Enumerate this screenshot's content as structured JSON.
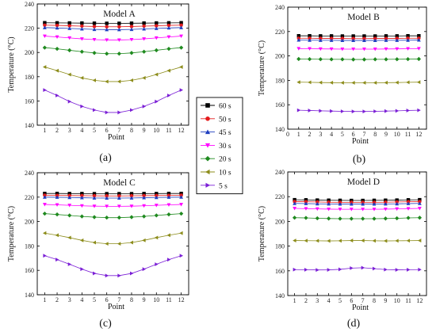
{
  "legend": [
    {
      "name": "60 s",
      "color": "#000000",
      "marker": "square"
    },
    {
      "name": "50 s",
      "color": "#e41a1c",
      "marker": "circle"
    },
    {
      "name": "45 s",
      "color": "#1f3fbf",
      "marker": "triangle-up"
    },
    {
      "name": "30 s",
      "color": "#ff00ff",
      "marker": "triangle-down"
    },
    {
      "name": "20 s",
      "color": "#1f8a1f",
      "marker": "diamond"
    },
    {
      "name": "10 s",
      "color": "#8c8c1a",
      "marker": "triangle-left"
    },
    {
      "name": "5 s",
      "color": "#7b1fd6",
      "marker": "triangle-right"
    }
  ],
  "chart_data": [
    {
      "type": "line",
      "title": "Model A",
      "panel_label": "(a)",
      "xlabel": "Point",
      "ylabel": "Temperature (°C)",
      "x": [
        1,
        2,
        3,
        4,
        5,
        6,
        7,
        8,
        9,
        10,
        11,
        12
      ],
      "xticks": [
        1,
        2,
        3,
        4,
        5,
        6,
        7,
        8,
        9,
        10,
        11,
        12
      ],
      "xlim": [
        0.4,
        12.6
      ],
      "ylim": [
        140,
        240
      ],
      "yticks": [
        140,
        160,
        180,
        200,
        220,
        240
      ],
      "series": [
        {
          "name": "60 s",
          "values": [
            224.5,
            224.4,
            224.3,
            224.2,
            224.1,
            224.0,
            224.0,
            224.1,
            224.2,
            224.3,
            224.4,
            224.5
          ]
        },
        {
          "name": "50 s",
          "values": [
            222.5,
            222.3,
            222.0,
            221.7,
            221.4,
            221.2,
            221.2,
            221.4,
            221.7,
            222.0,
            222.3,
            222.5
          ]
        },
        {
          "name": "45 s",
          "values": [
            220.5,
            220.2,
            219.8,
            219.4,
            219.0,
            218.8,
            218.8,
            219.0,
            219.4,
            219.8,
            220.2,
            220.5
          ]
        },
        {
          "name": "30 s",
          "values": [
            213.5,
            212.8,
            212.0,
            211.2,
            210.6,
            210.3,
            210.3,
            210.6,
            211.2,
            212.0,
            212.8,
            213.5
          ]
        },
        {
          "name": "20 s",
          "values": [
            204.0,
            203.0,
            201.8,
            200.6,
            199.6,
            199.0,
            199.0,
            199.6,
            200.6,
            201.8,
            203.0,
            204.0
          ]
        },
        {
          "name": "10 s",
          "values": [
            188.0,
            185.0,
            181.8,
            179.0,
            177.0,
            176.0,
            176.0,
            177.0,
            179.0,
            181.8,
            185.0,
            188.0
          ]
        },
        {
          "name": "5 s",
          "values": [
            169.0,
            164.5,
            159.5,
            155.5,
            152.5,
            150.5,
            150.5,
            152.5,
            155.5,
            159.5,
            164.5,
            169.0
          ]
        }
      ]
    },
    {
      "type": "line",
      "title": "Model B",
      "panel_label": "(b)",
      "xlabel": "Point",
      "ylabel": "Temperature (°C)",
      "x": [
        1,
        2,
        3,
        4,
        5,
        6,
        7,
        8,
        9,
        10,
        11,
        12
      ],
      "xticks": [
        0,
        1,
        2,
        3,
        4,
        5,
        6,
        7,
        8,
        9,
        10,
        11,
        12
      ],
      "xlim": [
        0,
        12.7
      ],
      "ylim": [
        140,
        240
      ],
      "yticks": [
        140,
        160,
        180,
        200,
        220,
        240
      ],
      "series": [
        {
          "name": "60 s",
          "values": [
            216.5,
            216.5,
            216.4,
            216.4,
            216.3,
            216.3,
            216.3,
            216.3,
            216.4,
            216.4,
            216.5,
            216.5
          ]
        },
        {
          "name": "50 s",
          "values": [
            214.5,
            214.5,
            214.4,
            214.3,
            214.3,
            214.2,
            214.2,
            214.3,
            214.3,
            214.4,
            214.5,
            214.5
          ]
        },
        {
          "name": "45 s",
          "values": [
            213.0,
            212.9,
            212.8,
            212.8,
            212.7,
            212.7,
            212.7,
            212.7,
            212.8,
            212.8,
            212.9,
            213.0
          ]
        },
        {
          "name": "30 s",
          "values": [
            206.0,
            205.9,
            205.8,
            205.7,
            205.6,
            205.6,
            205.6,
            205.6,
            205.7,
            205.8,
            205.9,
            206.0
          ]
        },
        {
          "name": "20 s",
          "values": [
            197.5,
            197.4,
            197.3,
            197.2,
            197.2,
            197.1,
            197.1,
            197.2,
            197.2,
            197.3,
            197.4,
            197.5
          ]
        },
        {
          "name": "10 s",
          "values": [
            178.5,
            178.4,
            178.2,
            178.1,
            178.0,
            178.0,
            178.0,
            178.0,
            178.1,
            178.2,
            178.4,
            178.5
          ]
        },
        {
          "name": "5 s",
          "values": [
            155.5,
            155.3,
            155.0,
            154.8,
            154.6,
            154.5,
            154.5,
            154.6,
            154.8,
            155.0,
            155.3,
            155.5
          ]
        }
      ]
    },
    {
      "type": "line",
      "title": "Model C",
      "panel_label": "(c)",
      "xlabel": "Point",
      "ylabel": "Temperature (°C)",
      "x": [
        1,
        2,
        3,
        4,
        5,
        6,
        7,
        8,
        9,
        10,
        11,
        12
      ],
      "xticks": [
        1,
        2,
        3,
        4,
        5,
        6,
        7,
        8,
        9,
        10,
        11,
        12
      ],
      "xlim": [
        0.4,
        12.6
      ],
      "ylim": [
        140,
        240
      ],
      "yticks": [
        140,
        160,
        180,
        200,
        220,
        240
      ],
      "series": [
        {
          "name": "60 s",
          "values": [
            223.0,
            223.0,
            222.9,
            222.9,
            222.8,
            222.8,
            222.8,
            222.8,
            222.9,
            222.9,
            223.0,
            223.0
          ]
        },
        {
          "name": "50 s",
          "values": [
            221.5,
            221.4,
            221.3,
            221.2,
            221.1,
            221.0,
            221.0,
            221.1,
            221.2,
            221.3,
            221.4,
            221.5
          ]
        },
        {
          "name": "45 s",
          "values": [
            220.0,
            219.9,
            219.7,
            219.5,
            219.3,
            219.2,
            219.2,
            219.3,
            219.5,
            219.7,
            219.9,
            220.0
          ]
        },
        {
          "name": "30 s",
          "values": [
            214.0,
            213.7,
            213.3,
            212.9,
            212.6,
            212.5,
            212.5,
            212.6,
            212.9,
            213.3,
            213.7,
            214.0
          ]
        },
        {
          "name": "20 s",
          "values": [
            206.5,
            205.8,
            205.0,
            204.2,
            203.6,
            203.2,
            203.2,
            203.6,
            204.2,
            205.0,
            205.8,
            206.5
          ]
        },
        {
          "name": "10 s",
          "values": [
            190.5,
            188.8,
            186.8,
            184.6,
            182.8,
            181.8,
            181.8,
            182.8,
            184.6,
            186.8,
            188.8,
            190.5
          ]
        },
        {
          "name": "5 s",
          "values": [
            172.0,
            168.8,
            165.0,
            161.0,
            157.5,
            155.7,
            155.7,
            157.5,
            161.0,
            165.0,
            168.8,
            172.0
          ]
        }
      ]
    },
    {
      "type": "line",
      "title": "Model D",
      "panel_label": "(d)",
      "xlabel": "Point",
      "ylabel": "Temperature (°C)",
      "x": [
        1,
        2,
        3,
        4,
        5,
        6,
        7,
        8,
        9,
        10,
        11,
        12
      ],
      "xticks": [
        1,
        2,
        3,
        4,
        5,
        6,
        7,
        8,
        9,
        10,
        11,
        12
      ],
      "xlim": [
        0.4,
        12.6
      ],
      "ylim": [
        140,
        240
      ],
      "yticks": [
        140,
        160,
        180,
        200,
        220,
        240
      ],
      "series": [
        {
          "name": "60 s",
          "values": [
            217.5,
            217.4,
            217.2,
            217.1,
            217.0,
            216.9,
            216.9,
            217.0,
            217.1,
            217.2,
            217.4,
            217.5
          ]
        },
        {
          "name": "50 s",
          "values": [
            216.0,
            215.9,
            215.7,
            215.5,
            215.4,
            215.4,
            215.4,
            215.4,
            215.5,
            215.7,
            215.9,
            216.0
          ]
        },
        {
          "name": "45 s",
          "values": [
            214.5,
            214.4,
            214.2,
            214.1,
            214.0,
            214.0,
            214.0,
            214.0,
            214.1,
            214.2,
            214.4,
            214.5
          ]
        },
        {
          "name": "30 s",
          "values": [
            210.5,
            210.3,
            210.1,
            209.9,
            209.8,
            209.8,
            209.8,
            209.8,
            209.9,
            210.1,
            210.3,
            210.5
          ]
        },
        {
          "name": "20 s",
          "values": [
            203.0,
            202.8,
            202.5,
            202.3,
            202.2,
            202.2,
            202.2,
            202.2,
            202.3,
            202.5,
            202.8,
            203.0
          ]
        },
        {
          "name": "10 s",
          "values": [
            184.5,
            184.4,
            184.3,
            184.2,
            184.3,
            184.5,
            184.5,
            184.3,
            184.2,
            184.3,
            184.4,
            184.5
          ]
        },
        {
          "name": "5 s",
          "values": [
            161.0,
            160.9,
            160.7,
            160.8,
            161.2,
            162.2,
            162.5,
            161.8,
            161.0,
            160.8,
            160.9,
            161.0
          ]
        }
      ]
    }
  ]
}
